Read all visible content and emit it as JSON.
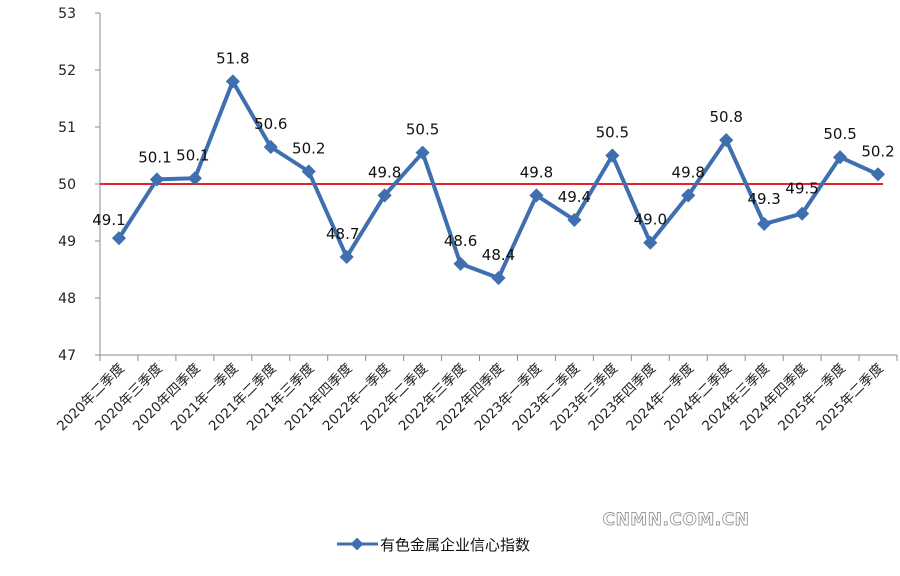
{
  "chart_data": {
    "type": "line",
    "categories": [
      "2020年二季度",
      "2020年三季度",
      "2020年四季度",
      "2021年一季度",
      "2021年二季度",
      "2021年三季度",
      "2021年四季度",
      "2022年一季度",
      "2022年二季度",
      "2022年三季度",
      "2022年四季度",
      "2023年一季度",
      "2023年二季度",
      "2023年三季度",
      "2023年四季度",
      "2024年一季度",
      "2024年二季度",
      "2024年三季度",
      "2024年四季度",
      "2025年一季度",
      "2025年二季度"
    ],
    "series": [
      {
        "name": "有色金属企业信心指数",
        "values": [
          49.1,
          50.1,
          50.1,
          51.8,
          50.6,
          50.2,
          48.7,
          49.8,
          50.5,
          48.6,
          48.4,
          49.8,
          49.4,
          50.5,
          49.0,
          49.8,
          50.8,
          49.3,
          49.5,
          50.5,
          50.2
        ],
        "plotted_values": [
          49.05,
          50.08,
          50.1,
          51.8,
          50.65,
          50.22,
          48.72,
          49.8,
          50.55,
          48.6,
          48.35,
          49.8,
          49.37,
          50.5,
          48.97,
          49.8,
          50.77,
          49.3,
          49.48,
          50.47,
          50.17
        ],
        "color": "#3f6fae"
      }
    ],
    "data_labels": [
      "49.1",
      "50.1",
      "50.1",
      "51.8",
      "50.6",
      "50.2",
      "48.7",
      "49.8",
      "50.5",
      "48.6",
      "48.4",
      "49.8",
      "49.4",
      "50.5",
      "49.0",
      "49.8",
      "50.8",
      "49.3",
      "49.5",
      "50.5",
      "50.2"
    ],
    "reference_line": {
      "value": 50,
      "color": "#e8222a"
    },
    "ylim": [
      47,
      53
    ],
    "yticks": [
      "47",
      "48",
      "49",
      "50",
      "51",
      "52",
      "53"
    ],
    "grid": false,
    "legend": {
      "position": "bottom",
      "label": "有色金属企业信心指数"
    },
    "title": "",
    "xlabel": "",
    "ylabel": ""
  },
  "watermark": "CNMN.COM.CN"
}
